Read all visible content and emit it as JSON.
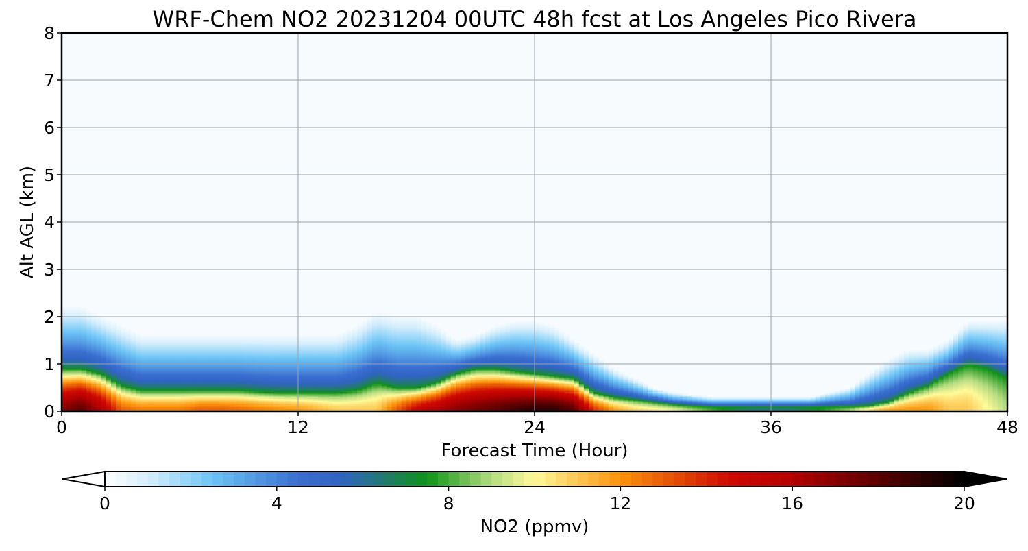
{
  "chart_data": {
    "type": "heatmap",
    "title": "WRF-Chem NO2  20231204 00UTC 48h fcst at Los Angeles Pico Rivera",
    "xlabel": "Forecast Time (Hour)",
    "ylabel": "Alt AGL (km)",
    "xlim": [
      0,
      48
    ],
    "ylim": [
      0,
      8
    ],
    "xticks": [
      "0",
      "12",
      "24",
      "36",
      "48"
    ],
    "yticks": [
      "0",
      "1",
      "2",
      "3",
      "4",
      "5",
      "6",
      "7",
      "8"
    ],
    "grid": true,
    "colorbar": {
      "label": "NO2  (ppmv)",
      "range": [
        0,
        20
      ],
      "ticks": [
        "0",
        "4",
        "8",
        "12",
        "16",
        "20"
      ],
      "extend": "both",
      "stops": [
        {
          "v": 0,
          "c": "#ffffff"
        },
        {
          "v": 1,
          "c": "#d6eefb"
        },
        {
          "v": 2.5,
          "c": "#6cc4f5"
        },
        {
          "v": 4.5,
          "c": "#3a6fd0"
        },
        {
          "v": 5.5,
          "c": "#3064c2"
        },
        {
          "v": 6.5,
          "c": "#227a6e"
        },
        {
          "v": 7.5,
          "c": "#0e9218"
        },
        {
          "v": 9,
          "c": "#b3dc80"
        },
        {
          "v": 10,
          "c": "#fffa9a"
        },
        {
          "v": 12,
          "c": "#fb930c"
        },
        {
          "v": 14.5,
          "c": "#cf0a00"
        },
        {
          "v": 16,
          "c": "#b40000"
        },
        {
          "v": 20,
          "c": "#000000"
        }
      ]
    },
    "profile": {
      "hours": [
        0,
        1,
        2,
        3,
        4,
        5,
        6,
        7,
        8,
        9,
        10,
        11,
        12,
        13,
        14,
        15,
        16,
        17,
        18,
        19,
        20,
        21,
        22,
        23,
        24,
        25,
        26,
        27,
        28,
        29,
        30,
        31,
        32,
        33,
        34,
        35,
        36,
        37,
        38,
        39,
        40,
        41,
        42,
        43,
        44,
        45,
        46,
        47,
        48
      ],
      "surface_no2": [
        17,
        18,
        16,
        13,
        12.5,
        12.5,
        12.5,
        13,
        13,
        12.8,
        12.5,
        12.2,
        12,
        11.5,
        11,
        11,
        11,
        13,
        15,
        16,
        17,
        17.5,
        18,
        18.5,
        19,
        19,
        18,
        14,
        12,
        11,
        10.5,
        10,
        9,
        8,
        7,
        6,
        6,
        6,
        7,
        8,
        9,
        11,
        12,
        12,
        12,
        11,
        11,
        10,
        9
      ],
      "mixing_depth_km": [
        0.9,
        0.9,
        0.8,
        0.55,
        0.45,
        0.45,
        0.45,
        0.45,
        0.45,
        0.45,
        0.42,
        0.4,
        0.4,
        0.4,
        0.4,
        0.45,
        0.6,
        0.5,
        0.5,
        0.6,
        0.8,
        0.9,
        0.9,
        0.85,
        0.8,
        0.75,
        0.7,
        0.4,
        0.3,
        0.25,
        0.2,
        0.15,
        0.12,
        0.1,
        0.1,
        0.1,
        0.1,
        0.1,
        0.1,
        0.1,
        0.1,
        0.12,
        0.2,
        0.4,
        0.55,
        0.8,
        1.0,
        0.9,
        0.7
      ],
      "upper_haze_top_km": [
        2.2,
        2.2,
        2.0,
        1.8,
        1.6,
        1.6,
        1.6,
        1.6,
        1.6,
        1.6,
        1.6,
        1.6,
        1.6,
        1.6,
        1.6,
        1.8,
        2.1,
        2.0,
        2.0,
        1.8,
        1.5,
        1.6,
        1.8,
        1.9,
        1.9,
        1.8,
        1.5,
        1.2,
        0.9,
        0.7,
        0.5,
        0.4,
        0.35,
        0.3,
        0.3,
        0.3,
        0.3,
        0.3,
        0.3,
        0.4,
        0.5,
        0.8,
        1.1,
        1.3,
        1.3,
        1.5,
        1.9,
        1.9,
        1.9
      ]
    }
  }
}
